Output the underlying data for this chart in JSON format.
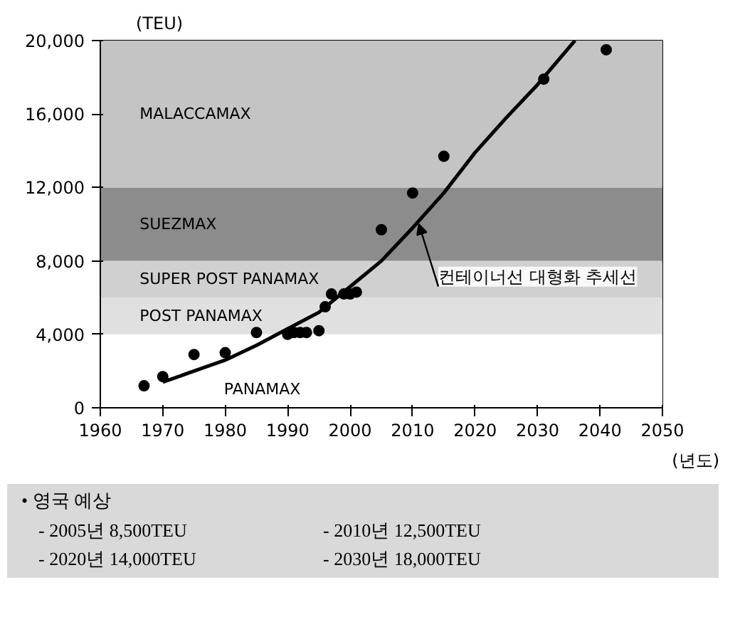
{
  "chart_data": {
    "type": "scatter",
    "ylabel": "(TEU)",
    "xlabel": "(년도)",
    "xlim": [
      1960,
      2050
    ],
    "xticks": [
      1960,
      1970,
      1980,
      1990,
      2000,
      2010,
      2020,
      2030,
      2040,
      2050
    ],
    "ylim": [
      0,
      20000
    ],
    "yticks": [
      0,
      {
        "value": 4000,
        "label": "4,000"
      },
      {
        "value": 8000,
        "label": "8,000"
      },
      {
        "value": 12000,
        "label": "12,000"
      },
      {
        "value": 16000,
        "label": "16,000"
      },
      {
        "value": 20000,
        "label": "20,000"
      }
    ],
    "grid": false,
    "marker": "circle",
    "bands": [
      {
        "axis": "y",
        "from": 0,
        "to": 4000,
        "label": "PANAMAX",
        "color": "#ffffff"
      },
      {
        "axis": "y",
        "from": 4000,
        "to": 6000,
        "label": "POST PANAMAX",
        "color": "#e0e0e0"
      },
      {
        "axis": "y",
        "from": 6000,
        "to": 8000,
        "label": "SUPER POST PANAMAX",
        "color": "#d0d0d0"
      },
      {
        "axis": "y",
        "from": 8000,
        "to": 12000,
        "label": "SUEZMAX",
        "color": "#8c8c8c"
      },
      {
        "axis": "y",
        "from": 12000,
        "to": 20000,
        "label": "MALACCAMAX",
        "color": "#c4c4c4"
      }
    ],
    "series": [
      {
        "color": "#000000",
        "x": [
          1967,
          1970,
          1975,
          1980,
          1985,
          1990,
          1991,
          1992,
          1993,
          1995,
          1996,
          1997,
          1999,
          2000,
          2001,
          2005,
          2010,
          2015,
          2031,
          2041
        ],
        "values": [
          1200,
          1700,
          2900,
          3000,
          4100,
          4000,
          4100,
          4100,
          4100,
          4200,
          5500,
          6200,
          6200,
          6200,
          6300,
          9700,
          11700,
          13700,
          17900,
          19500
        ]
      },
      {
        "type": "line",
        "marker": "none",
        "color": "#000000",
        "x": [
          1970,
          1975,
          1980,
          1985,
          1990,
          1995,
          2000,
          2005,
          2010,
          2015,
          2020,
          2025,
          2030,
          2036
        ],
        "values": [
          1400,
          2000,
          2600,
          3400,
          4300,
          5200,
          6600,
          8000,
          9800,
          11700,
          13900,
          15800,
          17600,
          20000
        ]
      }
    ],
    "annotations": [
      {
        "text": "컨테이너선 대형화 추세선",
        "x": 2011,
        "y": 10000
      },
      "• 영국 예상",
      "- 2005년 8,500TEU",
      "- 2010년 12,500TEU",
      "- 2020년 14,000TEU",
      "- 2030년 18,000TEU"
    ]
  }
}
